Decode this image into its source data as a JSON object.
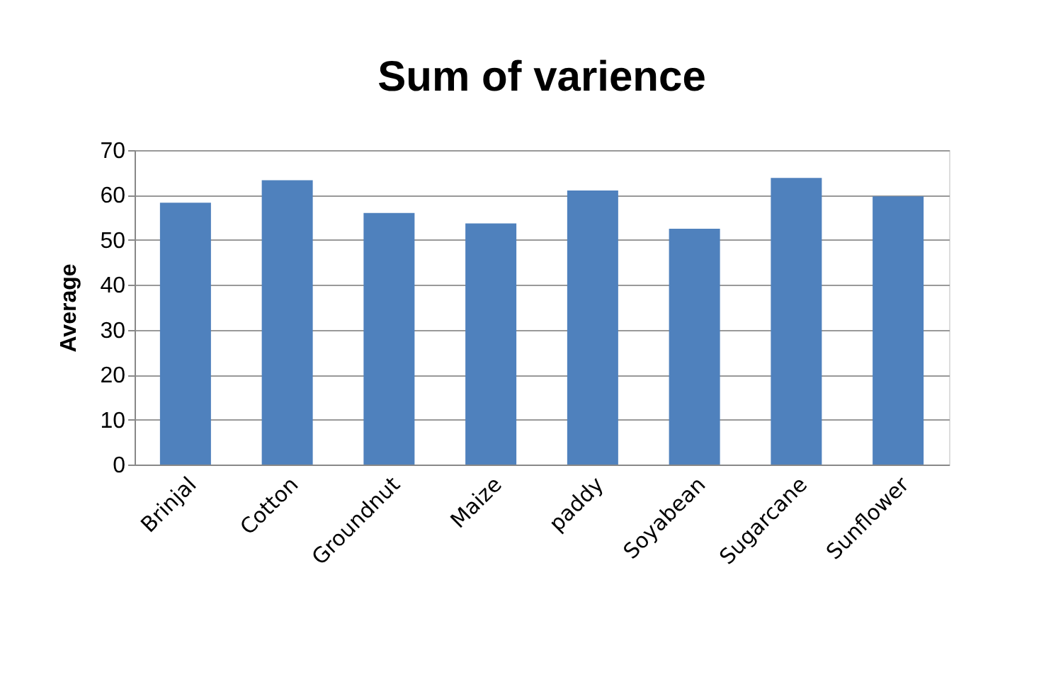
{
  "chart_data": {
    "type": "bar",
    "title": "Sum of varience",
    "ylabel": "Average",
    "categories": [
      "Brinjal",
      "Cotton",
      "Groundnut",
      "Maize",
      "paddy",
      "Soyabean",
      "Sugarcane",
      "Sunflower"
    ],
    "values": [
      58.3,
      63.3,
      56.0,
      53.7,
      61.0,
      52.5,
      63.8,
      59.7
    ],
    "color": "#4f81bd",
    "ylim": [
      0,
      70
    ],
    "yticks": [
      0,
      10,
      20,
      30,
      40,
      50,
      60,
      70
    ],
    "grid": "y"
  }
}
